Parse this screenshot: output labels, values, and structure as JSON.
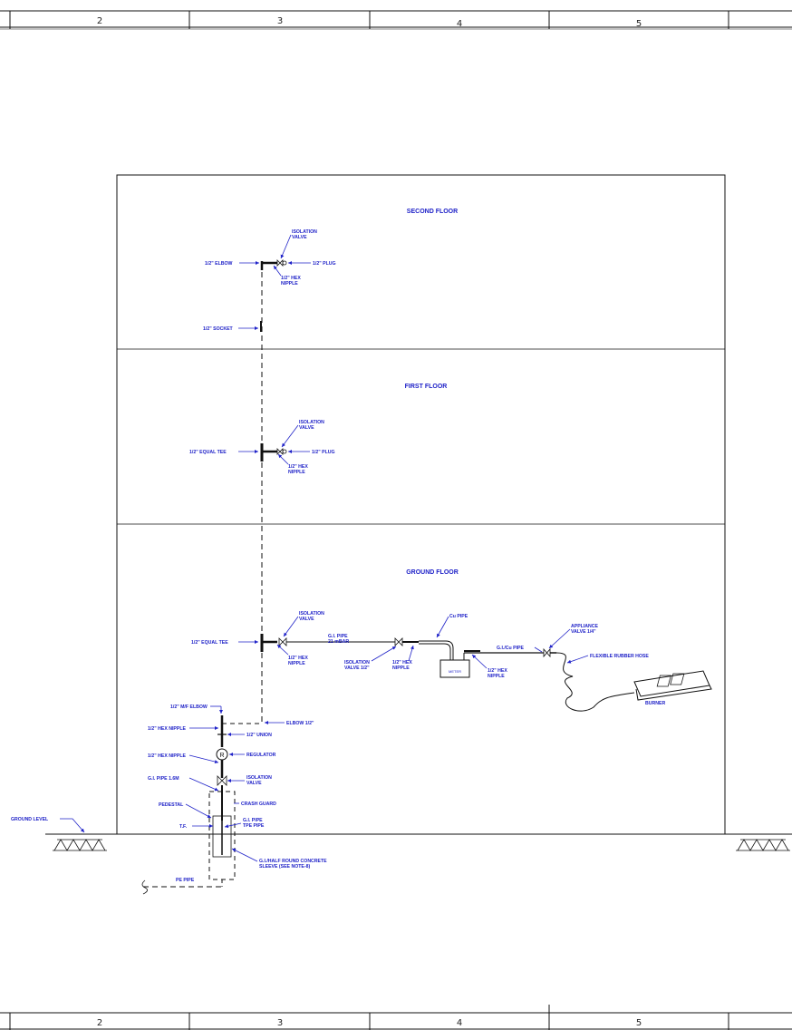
{
  "grid": {
    "columns": [
      "2",
      "3",
      "4",
      "5"
    ]
  },
  "floors": {
    "second": "SECOND FLOOR",
    "first": "FIRST FLOOR",
    "ground": "GROUND FLOOR"
  },
  "second_floor": {
    "isolation_valve_1": "ISOLATION",
    "isolation_valve_2": "VALVE",
    "elbow": "1/2\" ELBOW",
    "plug": "1/2\" PLUG",
    "hex_nipple_1": "1/2\" HEX",
    "hex_nipple_2": "NIPPLE",
    "socket": "1/2\" SOCKET"
  },
  "first_floor": {
    "isolation_valve_1": "ISOLATION",
    "isolation_valve_2": "VALVE",
    "equal_tee": "1/2\" EQUAL TEE",
    "plug": "1/2\" PLUG",
    "hex_nipple_1": "1/2\" HEX",
    "hex_nipple_2": "NIPPLE"
  },
  "ground_floor": {
    "isolation_valve_1": "ISOLATION",
    "isolation_valve_2": "VALVE",
    "equal_tee": "1/2\" EQUAL TEE",
    "hex_nipple_1": "1/2\" HEX",
    "hex_nipple_2": "NIPPLE",
    "gi_pipe_1": "G.I. PIPE",
    "gi_pipe_2": "21 mBAR",
    "iso_valve_half_1": "ISOLATION",
    "iso_valve_half_2": "VALVE 1/2\"",
    "hex_nipple2_1": "1/2\" HEX",
    "hex_nipple2_2": "NIPPLE",
    "cu_pipe": "Cu PIPE",
    "meter": "METER",
    "hex_nipple3_1": "1/2\" HEX",
    "hex_nipple3_2": "NIPPLE",
    "gi_cu_pipe": "G.I./Cu PIPE",
    "appliance_valve_1": "APPLIANCE",
    "appliance_valve_2": "VALVE 1/4\"",
    "flexible_hose": "FLEXIBLE RUBBER HOSE",
    "burner": "BURNER",
    "mf_elbow": "1/2\" M/F ELBOW",
    "elbow_half": "ELBOW 1/2\"",
    "hex_nipple_a": "1/2\" HEX NIPPLE",
    "union": "1/2\" UNION",
    "regulator": "REGULATOR",
    "regulator_symbol": "R",
    "hex_nipple_b": "1/2\" HEX NIPPLE",
    "gi_pipe_len": "G.I. PIPE 1.6M",
    "isolation2_1": "ISOLATION",
    "isolation2_2": "VALVE",
    "pedestal": "PEDESTAL",
    "crash_guard": "CRASH GUARD",
    "tf": "T.F.",
    "gi_pipe_pe_1": "G.I. PIPE",
    "gi_pipe_pe_2": "TPE PIPE",
    "ground_level": "GROUND LEVEL",
    "sleeve_1": "G.I./HALF ROUND CONCRETE",
    "sleeve_2": "SLEEVE (SEE NOTE-8)",
    "pe_pipe": "PE PIPE"
  }
}
